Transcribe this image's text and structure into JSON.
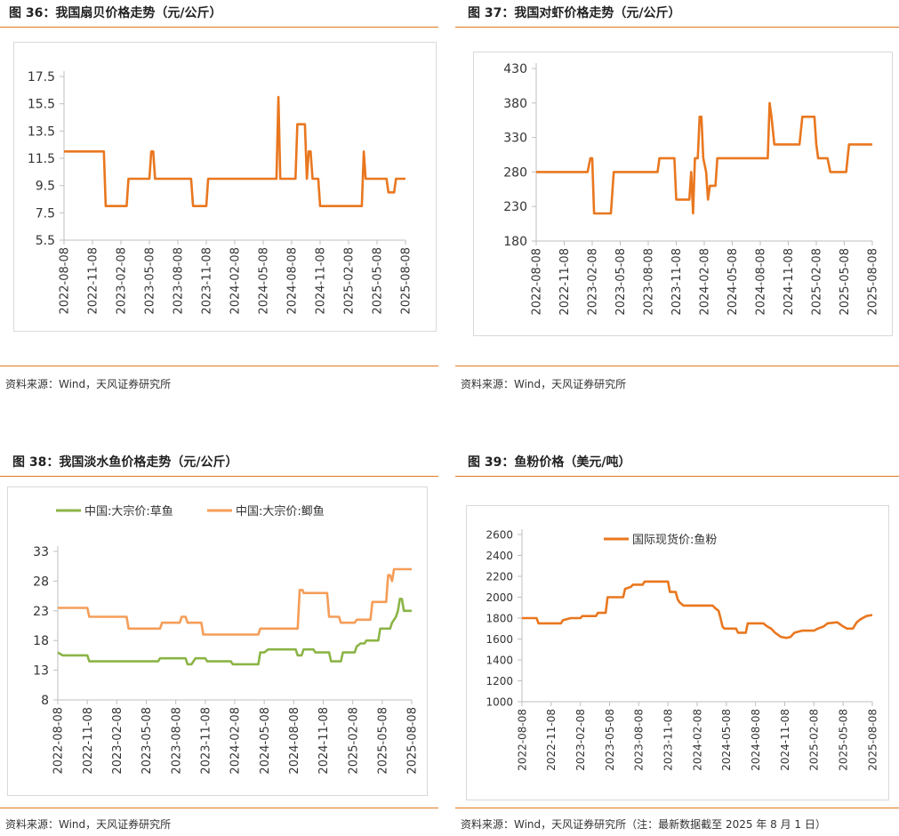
{
  "colors": {
    "orange": "#e9771f",
    "green": "#8bb446",
    "light_orange": "#f59d58",
    "rule": "#e07a1f"
  },
  "charts": [
    {
      "title": "图 36：我国扇贝价格走势（元/公斤）",
      "source": "资料来源：Wind，天风证券研究所",
      "chart_data": {
        "type": "line",
        "y_ticks": [
          "17.5",
          "15.5",
          "13.5",
          "11.5",
          "9.5",
          "7.5",
          "5.5"
        ],
        "ylim": [
          5.5,
          17.5
        ],
        "x_ticks": [
          "2022-08-08",
          "2022-11-08",
          "2023-02-08",
          "2023-05-08",
          "2023-08-08",
          "2023-11-08",
          "2024-02-08",
          "2024-05-08",
          "2024-08-08",
          "2024-11-08",
          "2025-02-08",
          "2025-05-08",
          "2025-08-08"
        ],
        "xlim": [
          0,
          36
        ],
        "series": [
          {
            "name": "扇贝",
            "points": [
              [
                0,
                12
              ],
              [
                4.2,
                12
              ],
              [
                4.4,
                8
              ],
              [
                6.6,
                8
              ],
              [
                6.8,
                10
              ],
              [
                9,
                10
              ],
              [
                9.2,
                12
              ],
              [
                9.4,
                12
              ],
              [
                9.6,
                10
              ],
              [
                13.4,
                10
              ],
              [
                13.6,
                8
              ],
              [
                15,
                8
              ],
              [
                15.2,
                10
              ],
              [
                22.4,
                10
              ],
              [
                22.6,
                16
              ],
              [
                22.8,
                10
              ],
              [
                24.4,
                10
              ],
              [
                24.6,
                14
              ],
              [
                25.4,
                14
              ],
              [
                25.6,
                10
              ],
              [
                25.8,
                12
              ],
              [
                26,
                12
              ],
              [
                26.2,
                10
              ],
              [
                26.8,
                10
              ],
              [
                27,
                8
              ],
              [
                31.4,
                8
              ],
              [
                31.6,
                12
              ],
              [
                31.8,
                10
              ],
              [
                34,
                10
              ],
              [
                34.2,
                9
              ],
              [
                34.8,
                9
              ],
              [
                35,
                10
              ],
              [
                36,
                10
              ]
            ]
          }
        ]
      }
    },
    {
      "title": "图 37：我国对虾价格走势（元/公斤）",
      "source": "资料来源：Wind，天风证券研究所",
      "chart_data": {
        "type": "line",
        "y_ticks": [
          "430",
          "380",
          "330",
          "280",
          "230",
          "180"
        ],
        "ylim": [
          180,
          430
        ],
        "x_ticks": [
          "2022-08-08",
          "2022-11-08",
          "2023-02-08",
          "2023-05-08",
          "2023-08-08",
          "2023-11-08",
          "2024-02-08",
          "2024-05-08",
          "2024-08-08",
          "2024-11-08",
          "2025-02-08",
          "2025-05-08",
          "2025-08-08"
        ],
        "xlim": [
          0,
          36
        ],
        "series": [
          {
            "name": "对虾",
            "points": [
              [
                0,
                280
              ],
              [
                5.5,
                280
              ],
              [
                5.8,
                300
              ],
              [
                6,
                300
              ],
              [
                6.2,
                220
              ],
              [
                8,
                220
              ],
              [
                8.3,
                280
              ],
              [
                13,
                280
              ],
              [
                13.2,
                300
              ],
              [
                14.8,
                300
              ],
              [
                15,
                240
              ],
              [
                16.4,
                240
              ],
              [
                16.6,
                280
              ],
              [
                16.8,
                220
              ],
              [
                17,
                300
              ],
              [
                17.3,
                300
              ],
              [
                17.5,
                360
              ],
              [
                17.7,
                360
              ],
              [
                17.9,
                300
              ],
              [
                18.2,
                280
              ],
              [
                18.4,
                240
              ],
              [
                18.6,
                260
              ],
              [
                19.2,
                260
              ],
              [
                19.4,
                300
              ],
              [
                24.8,
                300
              ],
              [
                25,
                380
              ],
              [
                25.2,
                360
              ],
              [
                25.5,
                320
              ],
              [
                28.2,
                320
              ],
              [
                28.5,
                360
              ],
              [
                29.8,
                360
              ],
              [
                30,
                320
              ],
              [
                30.2,
                300
              ],
              [
                31.2,
                300
              ],
              [
                31.5,
                280
              ],
              [
                33.2,
                280
              ],
              [
                33.5,
                320
              ],
              [
                36,
                320
              ]
            ]
          }
        ]
      }
    },
    {
      "title": "图 38：我国淡水鱼价格走势（元/公斤）",
      "source": "资料来源：Wind，天风证券研究所",
      "chart_data": {
        "type": "line",
        "legend": [
          "中国:大宗价:草鱼",
          "中国:大宗价:鲫鱼"
        ],
        "y_ticks": [
          "33",
          "28",
          "23",
          "18",
          "13",
          "8"
        ],
        "ylim": [
          8,
          33
        ],
        "x_ticks": [
          "2022-08-08",
          "2022-11-08",
          "2023-02-08",
          "2023-05-08",
          "2023-08-08",
          "2023-11-08",
          "2024-02-08",
          "2024-05-08",
          "2024-08-08",
          "2024-11-08",
          "2025-02-08",
          "2025-05-08",
          "2025-08-08"
        ],
        "xlim": [
          0,
          36
        ],
        "series": [
          {
            "name": "中国:大宗价:草鱼",
            "color_key": "green",
            "points": [
              [
                0,
                16
              ],
              [
                0.5,
                15.5
              ],
              [
                3,
                15.5
              ],
              [
                3.2,
                14.5
              ],
              [
                10.2,
                14.5
              ],
              [
                10.4,
                15
              ],
              [
                13,
                15
              ],
              [
                13.2,
                14
              ],
              [
                13.6,
                14
              ],
              [
                14,
                15
              ],
              [
                15,
                15
              ],
              [
                15.2,
                14.5
              ],
              [
                17.6,
                14.5
              ],
              [
                17.8,
                14
              ],
              [
                20.4,
                14
              ],
              [
                20.6,
                16
              ],
              [
                21,
                16
              ],
              [
                21.4,
                16.5
              ],
              [
                24.2,
                16.5
              ],
              [
                24.4,
                15.5
              ],
              [
                24.8,
                15.5
              ],
              [
                25,
                16.5
              ],
              [
                26,
                16.5
              ],
              [
                26.2,
                16
              ],
              [
                27.6,
                16
              ],
              [
                27.8,
                14.5
              ],
              [
                28.8,
                14.5
              ],
              [
                29,
                16
              ],
              [
                30.2,
                16
              ],
              [
                30.4,
                17
              ],
              [
                30.8,
                17.5
              ],
              [
                31.2,
                17.5
              ],
              [
                31.4,
                18
              ],
              [
                32.6,
                18
              ],
              [
                32.8,
                20
              ],
              [
                33.8,
                20
              ],
              [
                34,
                21
              ],
              [
                34.4,
                22
              ],
              [
                34.6,
                23
              ],
              [
                34.8,
                25
              ],
              [
                35,
                25
              ],
              [
                35.2,
                23
              ],
              [
                36,
                23
              ]
            ]
          },
          {
            "name": "中国:大宗价:鲫鱼",
            "color_key": "light_orange",
            "points": [
              [
                0,
                23.5
              ],
              [
                3,
                23.5
              ],
              [
                3.2,
                22
              ],
              [
                7,
                22
              ],
              [
                7.2,
                20
              ],
              [
                10.4,
                20
              ],
              [
                10.6,
                21
              ],
              [
                12.4,
                21
              ],
              [
                12.6,
                22
              ],
              [
                13,
                22
              ],
              [
                13.2,
                21
              ],
              [
                14.6,
                21
              ],
              [
                14.8,
                19
              ],
              [
                20.4,
                19
              ],
              [
                20.6,
                20
              ],
              [
                24.4,
                20
              ],
              [
                24.6,
                26.5
              ],
              [
                24.9,
                26.5
              ],
              [
                25,
                26
              ],
              [
                27.4,
                26
              ],
              [
                27.6,
                22
              ],
              [
                28.6,
                22
              ],
              [
                28.8,
                21
              ],
              [
                30.2,
                21
              ],
              [
                30.4,
                21.5
              ],
              [
                31.8,
                21.5
              ],
              [
                32,
                24.5
              ],
              [
                33.4,
                24.5
              ],
              [
                33.6,
                29
              ],
              [
                33.8,
                29
              ],
              [
                34,
                28
              ],
              [
                34.2,
                30
              ],
              [
                36,
                30
              ]
            ]
          }
        ]
      }
    },
    {
      "title": "图 39：鱼粉价格（美元/吨）",
      "source": "资料来源：Wind，天风证券研究所（注：最新数据截至 2025 年 8 月 1 日）",
      "chart_data": {
        "type": "line",
        "legend": [
          "国际现货价:鱼粉"
        ],
        "y_ticks": [
          "2600",
          "2400",
          "2200",
          "2000",
          "1800",
          "1600",
          "1400",
          "1200",
          "1000"
        ],
        "ylim": [
          1000,
          2600
        ],
        "x_ticks": [
          "2022-08-08",
          "2022-11-08",
          "2023-02-08",
          "2023-05-08",
          "2023-08-08",
          "2023-11-08",
          "2024-02-08",
          "2024-05-08",
          "2024-08-08",
          "2024-11-08",
          "2025-02-08",
          "2025-05-08",
          "2025-08-08"
        ],
        "xlim": [
          0,
          36
        ],
        "series": [
          {
            "name": "国际现货价:鱼粉",
            "color_key": "orange",
            "points": [
              [
                0,
                1800
              ],
              [
                1.5,
                1800
              ],
              [
                1.7,
                1750
              ],
              [
                4,
                1750
              ],
              [
                4.2,
                1780
              ],
              [
                5,
                1800
              ],
              [
                6,
                1800
              ],
              [
                6.2,
                1820
              ],
              [
                7.6,
                1820
              ],
              [
                7.8,
                1850
              ],
              [
                8.6,
                1850
              ],
              [
                8.8,
                2000
              ],
              [
                10.4,
                2000
              ],
              [
                10.6,
                2080
              ],
              [
                11.2,
                2100
              ],
              [
                11.4,
                2120
              ],
              [
                12.4,
                2120
              ],
              [
                12.6,
                2150
              ],
              [
                15,
                2150
              ],
              [
                15.2,
                2050
              ],
              [
                15.8,
                2050
              ],
              [
                16,
                1980
              ],
              [
                16.2,
                1950
              ],
              [
                16.6,
                1920
              ],
              [
                19.6,
                1920
              ],
              [
                19.8,
                1900
              ],
              [
                20.2,
                1870
              ],
              [
                20.4,
                1800
              ],
              [
                20.6,
                1720
              ],
              [
                20.8,
                1700
              ],
              [
                22,
                1700
              ],
              [
                22.2,
                1660
              ],
              [
                23,
                1660
              ],
              [
                23.2,
                1750
              ],
              [
                24.8,
                1750
              ],
              [
                25.2,
                1720
              ],
              [
                25.6,
                1700
              ],
              [
                26,
                1660
              ],
              [
                26.6,
                1620
              ],
              [
                27.2,
                1610
              ],
              [
                27.6,
                1620
              ],
              [
                28,
                1660
              ],
              [
                28.8,
                1680
              ],
              [
                30,
                1680
              ],
              [
                30.4,
                1700
              ],
              [
                31,
                1720
              ],
              [
                31.4,
                1750
              ],
              [
                32.4,
                1760
              ],
              [
                33,
                1720
              ],
              [
                33.4,
                1700
              ],
              [
                34,
                1700
              ],
              [
                34.4,
                1760
              ],
              [
                34.8,
                1790
              ],
              [
                35.4,
                1820
              ],
              [
                36,
                1830
              ]
            ]
          }
        ]
      }
    }
  ]
}
